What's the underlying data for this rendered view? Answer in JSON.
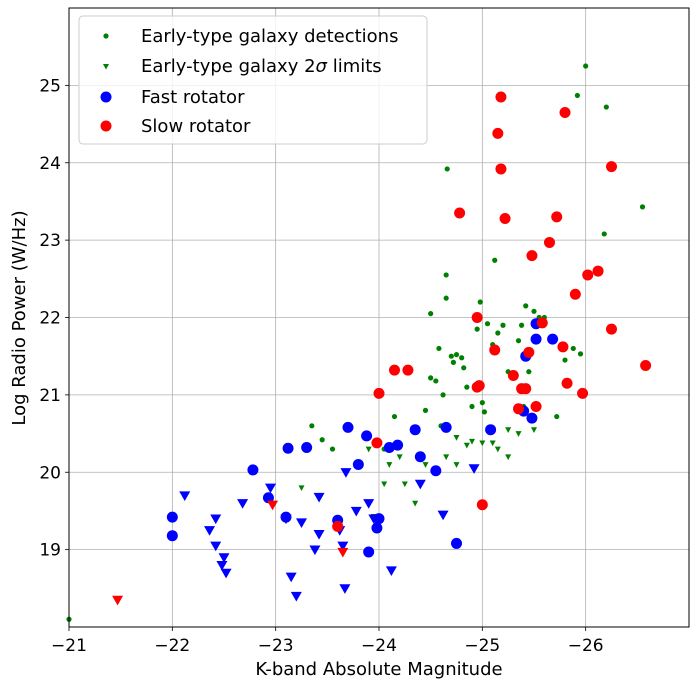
{
  "chart_data": {
    "type": "scatter",
    "title": "",
    "xlabel": "K-band Absolute Magnitude",
    "ylabel": "Log Radio Power (W/Hz)",
    "xlim": [
      -21,
      -27
    ],
    "ylim": [
      18,
      26
    ],
    "x_ticks": [
      -21,
      -22,
      -23,
      -24,
      -25,
      -26
    ],
    "x_tick_labels": [
      "−21",
      "−22",
      "−23",
      "−24",
      "−25",
      "−26"
    ],
    "y_ticks": [
      19,
      20,
      21,
      22,
      23,
      24,
      25
    ],
    "y_tick_labels": [
      "19",
      "20",
      "21",
      "22",
      "23",
      "24",
      "25"
    ],
    "grid": true,
    "legend_position": "top-left",
    "legend": [
      {
        "key": "etg_det",
        "label": "Early-type galaxy detections"
      },
      {
        "key": "etg_lim",
        "label_prefix": "Early-type galaxy 2",
        "label_sigma": "σ",
        "label_suffix": " limits"
      },
      {
        "key": "fast",
        "label": "Fast rotator"
      },
      {
        "key": "slow",
        "label": "Slow rotator"
      }
    ],
    "series": [
      {
        "key": "etg_det",
        "name": "Early-type galaxy detections",
        "marker": "dot",
        "color": "#008000",
        "points": [
          [
            -21.0,
            18.1
          ],
          [
            -23.35,
            20.6
          ],
          [
            -23.45,
            20.42
          ],
          [
            -23.55,
            20.3
          ],
          [
            -24.15,
            20.72
          ],
          [
            -24.05,
            20.3
          ],
          [
            -24.45,
            20.8
          ],
          [
            -24.5,
            21.22
          ],
          [
            -24.5,
            22.05
          ],
          [
            -24.55,
            21.18
          ],
          [
            -24.58,
            21.6
          ],
          [
            -24.6,
            20.6
          ],
          [
            -24.62,
            21.0
          ],
          [
            -24.65,
            22.25
          ],
          [
            -24.65,
            22.55
          ],
          [
            -24.66,
            23.92
          ],
          [
            -24.7,
            21.5
          ],
          [
            -24.72,
            21.42
          ],
          [
            -24.75,
            21.52
          ],
          [
            -24.8,
            21.48
          ],
          [
            -24.82,
            21.35
          ],
          [
            -24.85,
            21.1
          ],
          [
            -24.9,
            20.85
          ],
          [
            -24.95,
            21.85
          ],
          [
            -24.98,
            22.2
          ],
          [
            -25.0,
            20.9
          ],
          [
            -25.02,
            20.78
          ],
          [
            -25.05,
            21.92
          ],
          [
            -25.1,
            21.65
          ],
          [
            -25.12,
            22.74
          ],
          [
            -25.15,
            21.8
          ],
          [
            -25.2,
            21.9
          ],
          [
            -25.25,
            21.3
          ],
          [
            -25.3,
            21.25
          ],
          [
            -25.35,
            21.7
          ],
          [
            -25.38,
            21.9
          ],
          [
            -25.4,
            20.85
          ],
          [
            -25.42,
            22.15
          ],
          [
            -25.45,
            21.3
          ],
          [
            -25.5,
            22.08
          ],
          [
            -25.55,
            22.0
          ],
          [
            -25.6,
            22.0
          ],
          [
            -25.72,
            20.72
          ],
          [
            -25.8,
            21.45
          ],
          [
            -25.88,
            21.6
          ],
          [
            -25.95,
            21.53
          ],
          [
            -25.92,
            24.87
          ],
          [
            -26.0,
            25.25
          ],
          [
            -26.18,
            23.08
          ],
          [
            -26.2,
            24.72
          ],
          [
            -26.55,
            23.43
          ]
        ]
      },
      {
        "key": "etg_lim",
        "name": "Early-type galaxy 2σ limits",
        "marker": "triangle-down-small",
        "color": "#008000",
        "points": [
          [
            -23.25,
            19.8
          ],
          [
            -23.9,
            20.3
          ],
          [
            -23.95,
            19.43
          ],
          [
            -24.05,
            19.85
          ],
          [
            -24.1,
            20.1
          ],
          [
            -24.2,
            20.2
          ],
          [
            -24.25,
            19.85
          ],
          [
            -24.35,
            19.6
          ],
          [
            -24.45,
            20.1
          ],
          [
            -24.65,
            20.2
          ],
          [
            -24.75,
            20.45
          ],
          [
            -24.75,
            20.1
          ],
          [
            -24.85,
            20.35
          ],
          [
            -24.9,
            20.4
          ],
          [
            -25.0,
            20.38
          ],
          [
            -25.1,
            20.38
          ],
          [
            -25.15,
            20.3
          ],
          [
            -25.25,
            20.55
          ],
          [
            -25.25,
            20.2
          ],
          [
            -25.35,
            20.5
          ],
          [
            -25.5,
            20.55
          ]
        ]
      },
      {
        "key": "fast",
        "name": "Fast rotator",
        "marker": "circle",
        "color": "#0000ff",
        "points": [
          [
            -22.0,
            19.42
          ],
          [
            -22.0,
            19.18
          ],
          [
            -22.78,
            20.03
          ],
          [
            -22.93,
            19.67
          ],
          [
            -23.1,
            19.42
          ],
          [
            -23.12,
            20.31
          ],
          [
            -23.3,
            20.32
          ],
          [
            -23.6,
            19.38
          ],
          [
            -23.7,
            20.58
          ],
          [
            -23.8,
            20.1
          ],
          [
            -23.88,
            20.47
          ],
          [
            -23.9,
            18.97
          ],
          [
            -23.98,
            19.28
          ],
          [
            -24.0,
            19.4
          ],
          [
            -24.1,
            20.32
          ],
          [
            -24.18,
            20.35
          ],
          [
            -24.35,
            20.55
          ],
          [
            -24.4,
            20.2
          ],
          [
            -24.55,
            20.02
          ],
          [
            -24.65,
            20.58
          ],
          [
            -24.75,
            19.08
          ],
          [
            -25.08,
            20.55
          ],
          [
            -25.4,
            20.79
          ],
          [
            -25.42,
            21.5
          ],
          [
            -25.48,
            20.7
          ],
          [
            -25.52,
            21.72
          ],
          [
            -25.52,
            21.92
          ],
          [
            -25.68,
            21.72
          ]
        ]
      },
      {
        "key": "fast_lim",
        "name": "Fast rotator limits",
        "marker": "triangle-down",
        "color": "#0000ff",
        "points": [
          [
            -22.12,
            19.7
          ],
          [
            -22.36,
            19.25
          ],
          [
            -22.42,
            19.05
          ],
          [
            -22.42,
            19.4
          ],
          [
            -22.48,
            18.8
          ],
          [
            -22.5,
            18.9
          ],
          [
            -22.52,
            18.7
          ],
          [
            -22.68,
            19.6
          ],
          [
            -22.95,
            19.8
          ],
          [
            -23.1,
            19.4
          ],
          [
            -23.15,
            18.65
          ],
          [
            -23.2,
            18.4
          ],
          [
            -23.25,
            19.35
          ],
          [
            -23.38,
            19.0
          ],
          [
            -23.42,
            19.2
          ],
          [
            -23.42,
            19.68
          ],
          [
            -23.62,
            19.25
          ],
          [
            -23.65,
            19.05
          ],
          [
            -23.67,
            18.5
          ],
          [
            -23.68,
            20.0
          ],
          [
            -23.78,
            19.5
          ],
          [
            -23.9,
            19.6
          ],
          [
            -23.95,
            19.4
          ],
          [
            -24.12,
            18.73
          ],
          [
            -24.4,
            19.85
          ],
          [
            -24.62,
            19.45
          ],
          [
            -24.92,
            20.05
          ]
        ]
      },
      {
        "key": "slow",
        "name": "Slow rotator",
        "marker": "circle",
        "color": "#ff0000",
        "points": [
          [
            -23.6,
            19.3
          ],
          [
            -23.98,
            20.38
          ],
          [
            -24.0,
            21.02
          ],
          [
            -24.15,
            21.32
          ],
          [
            -24.28,
            21.32
          ],
          [
            -24.78,
            23.35
          ],
          [
            -24.95,
            21.1
          ],
          [
            -24.95,
            22.0
          ],
          [
            -24.97,
            21.12
          ],
          [
            -25.0,
            19.58
          ],
          [
            -25.12,
            21.58
          ],
          [
            -25.15,
            24.38
          ],
          [
            -25.18,
            24.85
          ],
          [
            -25.18,
            23.92
          ],
          [
            -25.22,
            23.28
          ],
          [
            -25.3,
            21.25
          ],
          [
            -25.35,
            20.82
          ],
          [
            -25.38,
            21.08
          ],
          [
            -25.42,
            21.08
          ],
          [
            -25.45,
            21.55
          ],
          [
            -25.48,
            22.8
          ],
          [
            -25.52,
            20.85
          ],
          [
            -25.58,
            21.93
          ],
          [
            -25.65,
            22.97
          ],
          [
            -25.72,
            23.3
          ],
          [
            -25.78,
            21.62
          ],
          [
            -25.8,
            24.65
          ],
          [
            -25.82,
            21.15
          ],
          [
            -25.9,
            22.3
          ],
          [
            -25.97,
            21.02
          ],
          [
            -26.02,
            22.55
          ],
          [
            -26.12,
            22.6
          ],
          [
            -26.25,
            23.95
          ],
          [
            -26.25,
            21.85
          ],
          [
            -26.58,
            21.38
          ]
        ]
      },
      {
        "key": "slow_lim",
        "name": "Slow rotator limits",
        "marker": "triangle-down",
        "color": "#ff0000",
        "points": [
          [
            -21.47,
            18.35
          ],
          [
            -22.97,
            19.58
          ],
          [
            -23.65,
            18.97
          ]
        ]
      }
    ]
  }
}
